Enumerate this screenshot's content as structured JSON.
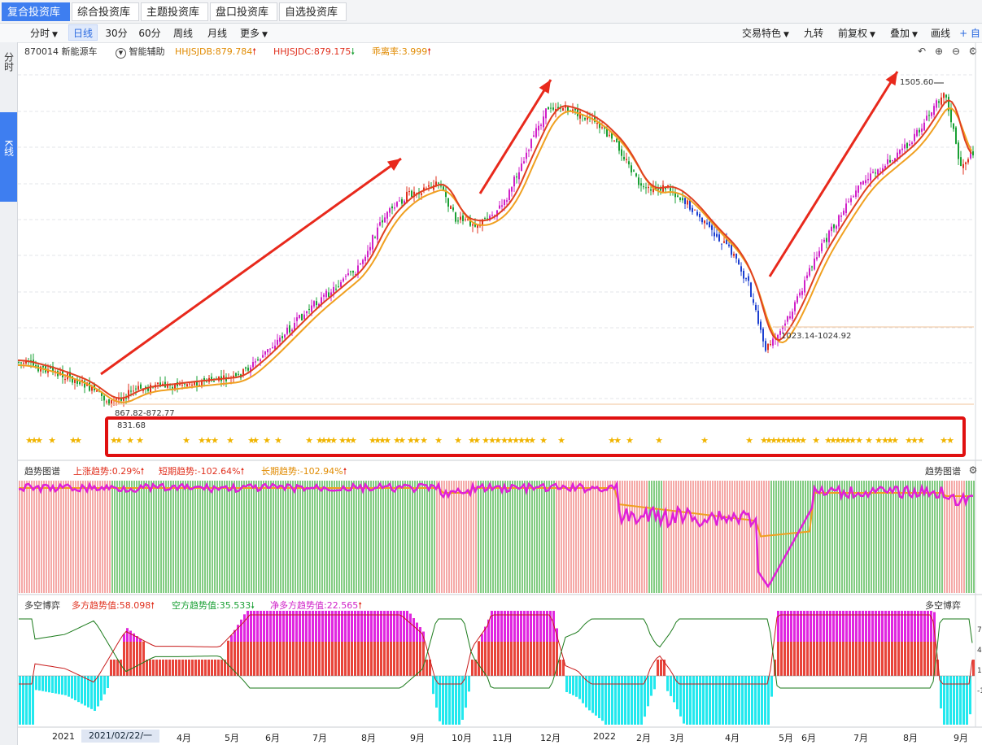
{
  "top_tabs": [
    {
      "label": "复合投资库",
      "active": true
    },
    {
      "label": "综合投资库",
      "active": false
    },
    {
      "label": "主题投资库",
      "active": false
    },
    {
      "label": "盘口投资库",
      "active": false
    },
    {
      "label": "自选投资库",
      "active": false
    }
  ],
  "toolbar": {
    "periods": [
      {
        "label": "分时",
        "has_caret": true,
        "active": false
      },
      {
        "label": "日线",
        "has_caret": false,
        "active": true
      },
      {
        "label": "30分",
        "has_caret": false,
        "active": false
      },
      {
        "label": "60分",
        "has_caret": false,
        "active": false
      },
      {
        "label": "周线",
        "has_caret": false,
        "active": false
      },
      {
        "label": "月线",
        "has_caret": false,
        "active": false
      },
      {
        "label": "更多",
        "has_caret": true,
        "active": false
      }
    ],
    "right_buttons": [
      {
        "label": "交易特色",
        "has_caret": true
      },
      {
        "label": "九转",
        "has_caret": false
      },
      {
        "label": "前复权",
        "has_caret": true
      },
      {
        "label": "叠加",
        "has_caret": true
      },
      {
        "label": "画线",
        "has_caret": false
      },
      {
        "label": "+ 自",
        "has_caret": false
      }
    ]
  },
  "side_tabs": [
    {
      "label": "分时",
      "active": false
    },
    {
      "label": "K线",
      "active": true
    }
  ],
  "main_info": {
    "code_name": "870014 新能源车",
    "assist_label": "智能辅助",
    "hhjsjdb": "HHJSJDB:879.784",
    "hhjsjdc": "HHJSJDC:879.175",
    "deviation": "乖离率:3.999",
    "colors": {
      "hhjsjdb": "#e08a00",
      "hhjsjdc": "#e0301e",
      "deviation": "#e08a00"
    }
  },
  "price_annotations": {
    "high_label": "1505.60",
    "low_range_1": "867.82-872.77",
    "low_label": "831.68",
    "low_range_2": "1023.14-1024.92"
  },
  "trend_panel": {
    "title": "趋势图谱",
    "rise": "上涨趋势:0.29%",
    "short": "短期趋势:-102.64%",
    "long": "长期趋势:-102.94%",
    "right_label": "趋势图谱"
  },
  "bullbear_panel": {
    "title": "多空博弈",
    "bull": "多方趋势值:58.098",
    "bear": "空方趋势值:35.533",
    "net": "净多方趋势值:22.565",
    "right_label": "多空博弈"
  },
  "time_axis": {
    "labels": [
      "2021",
      "4月",
      "5月",
      "6月",
      "7月",
      "8月",
      "9月",
      "10月",
      "11月",
      "12月",
      "2022",
      "2月",
      "3月",
      "4月",
      "5月",
      "6月",
      "7月",
      "8月",
      "9月"
    ],
    "cursor_label": "2021/02/22/一"
  },
  "right_axis_ticks": {
    "bullbear": [
      "7",
      "4",
      "1",
      "-1"
    ]
  },
  "chart_data": {
    "type": "candlestick",
    "title": "870014 新能源车",
    "period": "日线",
    "visible_extremes": {
      "high": 1505.6,
      "low": 831.68
    }
  },
  "colors": {
    "accent": "#3e7ef0",
    "up": "#e0301e",
    "down": "#1aa034",
    "strong_up": "#d021c8",
    "strong_down": "#1c3fd0",
    "ma_orange": "#f0a020",
    "ma_red": "#e04020",
    "star": "#f0b400",
    "highlight_box": "#e01010",
    "bull_hist": "#e8443a",
    "bull_hist_top": "#e026e0",
    "bear_hist": "#22e8ee",
    "trend_green": "#6cc36c",
    "trend_pink": "#f39a98"
  }
}
